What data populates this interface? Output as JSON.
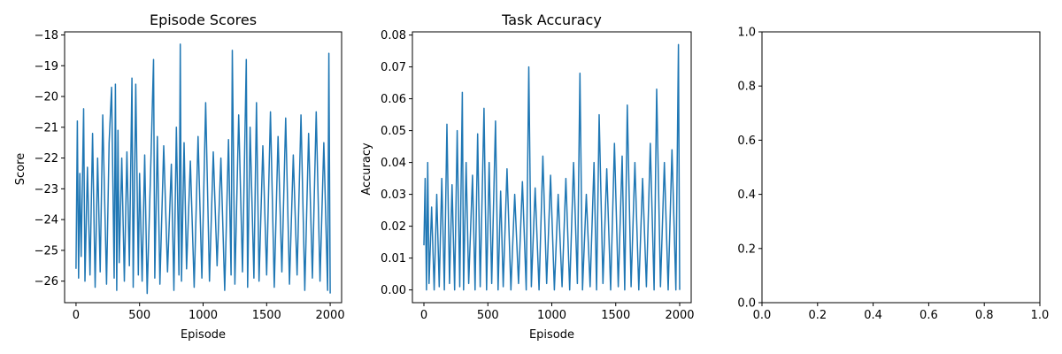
{
  "chart_data": [
    {
      "type": "line",
      "title": "Episode Scores",
      "xlabel": "Episode",
      "ylabel": "Score",
      "xlim": [
        -90,
        2090
      ],
      "ylim": [
        -26.7,
        -17.9
      ],
      "xticks": [
        0,
        500,
        1000,
        1500,
        2000
      ],
      "xtick_labels": [
        "0",
        "500",
        "1000",
        "1500",
        "2000"
      ],
      "yticks": [
        -26,
        -25,
        -24,
        -23,
        -22,
        -21,
        -20,
        -19,
        -18
      ],
      "ytick_labels": [
        "−26",
        "−25",
        "−24",
        "−23",
        "−22",
        "−21",
        "−20",
        "−19",
        "−18"
      ],
      "series_color": "#1f77b4",
      "series": [
        {
          "x": [
            0,
            10,
            20,
            30,
            40,
            60,
            70,
            90,
            110,
            130,
            150,
            170,
            190,
            210,
            240,
            260,
            280,
            300,
            310,
            320,
            330,
            340,
            360,
            380,
            400,
            420,
            440,
            450,
            470,
            490,
            500,
            520,
            540,
            560,
            590,
            610,
            620,
            640,
            660,
            690,
            720,
            750,
            770,
            790,
            810,
            820,
            830,
            850,
            870,
            900,
            930,
            960,
            990,
            1020,
            1050,
            1080,
            1110,
            1140,
            1170,
            1200,
            1220,
            1230,
            1250,
            1280,
            1310,
            1340,
            1350,
            1370,
            1400,
            1420,
            1440,
            1470,
            1500,
            1530,
            1560,
            1590,
            1620,
            1650,
            1680,
            1710,
            1740,
            1770,
            1800,
            1830,
            1860,
            1890,
            1920,
            1950,
            1980,
            1990,
            2000
          ],
          "y": [
            -25.6,
            -20.8,
            -25.9,
            -22.5,
            -25.2,
            -20.4,
            -26.0,
            -22.3,
            -25.8,
            -21.2,
            -26.2,
            -22.0,
            -25.7,
            -20.6,
            -26.1,
            -21.5,
            -19.7,
            -25.9,
            -19.6,
            -26.3,
            -21.1,
            -25.4,
            -22.0,
            -26.0,
            -21.8,
            -25.5,
            -19.4,
            -26.2,
            -19.6,
            -25.8,
            -22.5,
            -26.0,
            -21.9,
            -26.4,
            -22.0,
            -18.8,
            -25.9,
            -21.3,
            -26.1,
            -21.6,
            -25.7,
            -22.2,
            -26.3,
            -21.0,
            -25.8,
            -18.3,
            -26.0,
            -21.5,
            -25.6,
            -22.1,
            -26.2,
            -21.3,
            -25.9,
            -20.2,
            -26.0,
            -21.8,
            -25.5,
            -22.0,
            -26.3,
            -21.4,
            -25.8,
            -18.5,
            -26.1,
            -20.6,
            -25.7,
            -18.8,
            -26.2,
            -21.0,
            -25.9,
            -20.2,
            -26.0,
            -21.6,
            -25.8,
            -20.5,
            -26.2,
            -21.3,
            -25.7,
            -20.7,
            -26.1,
            -21.9,
            -25.8,
            -20.6,
            -26.3,
            -21.2,
            -25.9,
            -20.5,
            -26.0,
            -21.5,
            -26.3,
            -18.6,
            -26.4
          ]
        }
      ],
      "grid": false,
      "legend": false
    },
    {
      "type": "line",
      "title": "Task Accuracy",
      "xlabel": "Episode",
      "ylabel": "Accuracy",
      "xlim": [
        -90,
        2090
      ],
      "ylim": [
        -0.004,
        0.081
      ],
      "xticks": [
        0,
        500,
        1000,
        1500,
        2000
      ],
      "xtick_labels": [
        "0",
        "500",
        "1000",
        "1500",
        "2000"
      ],
      "yticks": [
        0.0,
        0.01,
        0.02,
        0.03,
        0.04,
        0.05,
        0.06,
        0.07,
        0.08
      ],
      "ytick_labels": [
        "0.00",
        "0.01",
        "0.02",
        "0.03",
        "0.04",
        "0.05",
        "0.06",
        "0.07",
        "0.08"
      ],
      "series_color": "#1f77b4",
      "series": [
        {
          "x": [
            0,
            10,
            20,
            30,
            40,
            60,
            80,
            100,
            120,
            140,
            160,
            180,
            200,
            220,
            240,
            260,
            280,
            300,
            310,
            330,
            350,
            380,
            400,
            420,
            440,
            470,
            490,
            510,
            530,
            560,
            580,
            600,
            620,
            650,
            680,
            710,
            740,
            770,
            800,
            820,
            840,
            870,
            900,
            930,
            960,
            990,
            1020,
            1050,
            1080,
            1110,
            1140,
            1170,
            1200,
            1220,
            1240,
            1270,
            1300,
            1330,
            1350,
            1370,
            1400,
            1430,
            1460,
            1490,
            1520,
            1550,
            1570,
            1590,
            1620,
            1650,
            1680,
            1710,
            1740,
            1770,
            1800,
            1820,
            1850,
            1880,
            1910,
            1940,
            1970,
            1990,
            2000
          ],
          "y": [
            0.014,
            0.035,
            0.0,
            0.04,
            0.002,
            0.026,
            0.0,
            0.03,
            0.001,
            0.035,
            0.0,
            0.052,
            0.002,
            0.033,
            0.0,
            0.05,
            0.001,
            0.062,
            0.0,
            0.04,
            0.002,
            0.036,
            0.0,
            0.049,
            0.001,
            0.057,
            0.0,
            0.04,
            0.002,
            0.053,
            0.0,
            0.031,
            0.001,
            0.038,
            0.0,
            0.03,
            0.002,
            0.034,
            0.0,
            0.07,
            0.001,
            0.032,
            0.0,
            0.042,
            0.002,
            0.036,
            0.0,
            0.03,
            0.001,
            0.035,
            0.0,
            0.04,
            0.002,
            0.068,
            0.0,
            0.03,
            0.001,
            0.04,
            0.0,
            0.055,
            0.002,
            0.038,
            0.0,
            0.046,
            0.001,
            0.042,
            0.0,
            0.058,
            0.001,
            0.04,
            0.0,
            0.035,
            0.001,
            0.046,
            0.0,
            0.063,
            0.001,
            0.04,
            0.0,
            0.044,
            0.0,
            0.077,
            0.0
          ]
        }
      ],
      "grid": false,
      "legend": false
    },
    {
      "type": "line",
      "title": "",
      "xlabel": "",
      "ylabel": "",
      "xlim": [
        0,
        1
      ],
      "ylim": [
        0,
        1
      ],
      "xticks": [
        0.0,
        0.2,
        0.4,
        0.6,
        0.8,
        1.0
      ],
      "xtick_labels": [
        "0.0",
        "0.2",
        "0.4",
        "0.6",
        "0.8",
        "1.0"
      ],
      "yticks": [
        0.0,
        0.2,
        0.4,
        0.6,
        0.8,
        1.0
      ],
      "ytick_labels": [
        "0.0",
        "0.2",
        "0.4",
        "0.6",
        "0.8",
        "1.0"
      ],
      "series": [],
      "grid": false,
      "legend": false
    }
  ]
}
